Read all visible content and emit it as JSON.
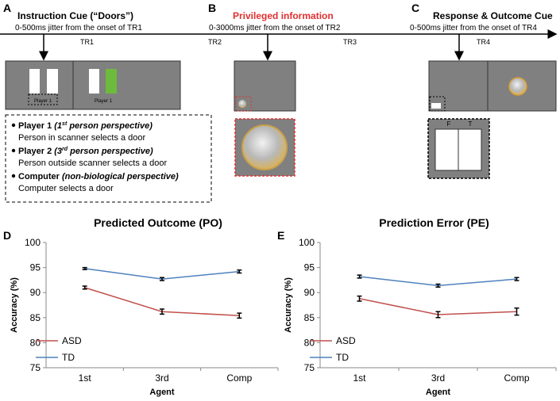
{
  "diagram": {
    "panels": [
      {
        "letter": "A",
        "title": "Instruction Cue (“Doors”)",
        "jitter": "0-500ms jitter from the onset of TR1"
      },
      {
        "letter": "B",
        "title": "Privileged information",
        "jitter": "0-3000ms jitter from the onset of TR2"
      },
      {
        "letter": "C",
        "title": "Response & Outcome Cue",
        "jitter": "0-500ms jitter from the onset of TR4"
      }
    ],
    "tr_labels": [
      "TR1",
      "TR2",
      "TR3",
      "TR4"
    ],
    "screen_labels": [
      "Player 1",
      "Player 1"
    ],
    "response_labels": [
      "F",
      "T"
    ],
    "conditions": [
      {
        "name": "Player 1",
        "perspective": [
          "(1",
          "st",
          " person perspective)"
        ],
        "description": "Person in scanner selects a door"
      },
      {
        "name": "Player 2",
        "perspective": [
          "(3",
          "rd",
          " person perspective)"
        ],
        "description": "Person outside scanner selects a door"
      },
      {
        "name": "Computer",
        "perspective": [
          "(non-biological perspective)"
        ],
        "description": "Computer selects a door"
      }
    ]
  },
  "chart_data": [
    {
      "type": "line",
      "panel": "D",
      "title": "Predicted Outcome (PO)",
      "xlabel": "Agent",
      "ylabel": "Accuracy (%)",
      "categories": [
        "1st",
        "3rd",
        "Comp"
      ],
      "ylim": [
        75,
        100
      ],
      "yticks": [
        75,
        80,
        85,
        90,
        95,
        100
      ],
      "series": [
        {
          "name": "ASD",
          "color": "#c0504d",
          "values": [
            91.0,
            86.2,
            85.4
          ],
          "errors": [
            0.3,
            0.5,
            0.5
          ]
        },
        {
          "name": "TD",
          "color": "#4f81bd",
          "values": [
            94.8,
            92.7,
            94.2
          ],
          "errors": [
            0.2,
            0.3,
            0.3
          ]
        }
      ]
    },
    {
      "type": "line",
      "panel": "E",
      "title": "Prediction Error (PE)",
      "xlabel": "Agent",
      "ylabel": "Accuracy (%)",
      "categories": [
        "1st",
        "3rd",
        "Comp"
      ],
      "ylim": [
        75,
        100
      ],
      "yticks": [
        75,
        80,
        85,
        90,
        95,
        100
      ],
      "series": [
        {
          "name": "ASD",
          "color": "#c0504d",
          "values": [
            88.8,
            85.6,
            86.2
          ],
          "errors": [
            0.5,
            0.6,
            0.7
          ]
        },
        {
          "name": "TD",
          "color": "#4f81bd",
          "values": [
            93.2,
            91.4,
            92.7
          ],
          "errors": [
            0.3,
            0.3,
            0.3
          ]
        }
      ]
    }
  ]
}
